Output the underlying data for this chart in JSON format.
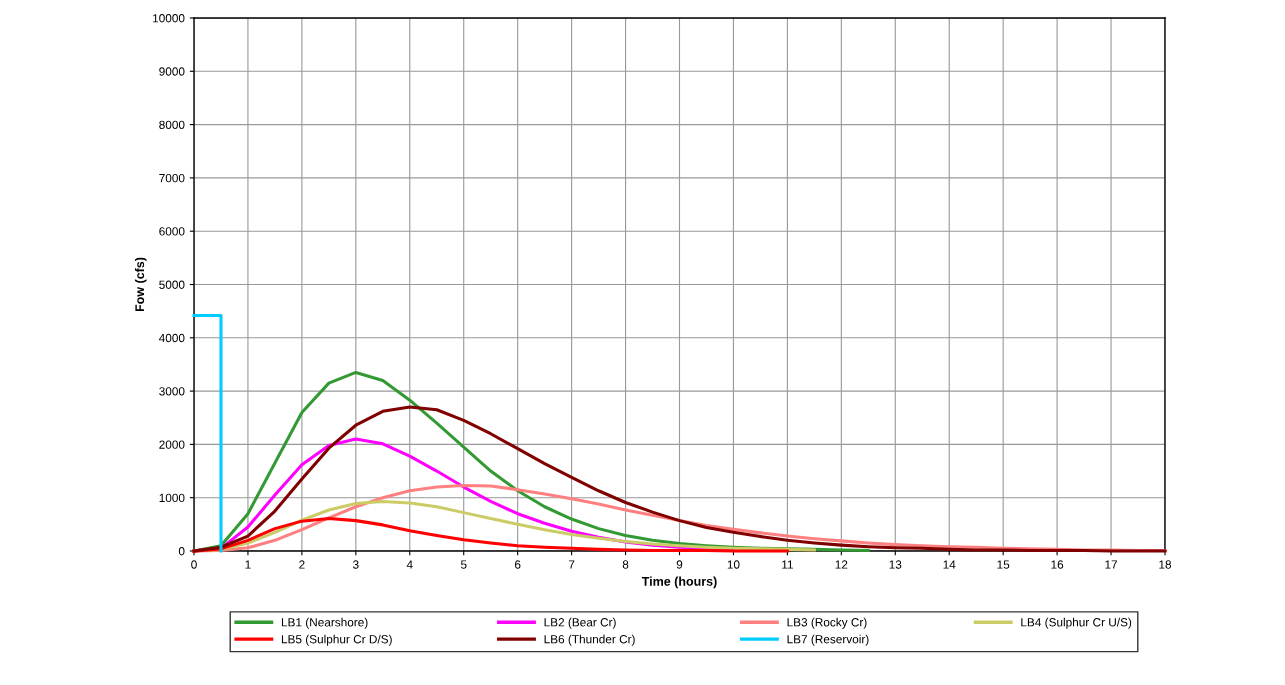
{
  "chart_data": {
    "type": "line",
    "xlabel": "Time (hours)",
    "ylabel": "Fow (cfs)",
    "x": [
      0,
      0.5,
      1,
      1.5,
      2,
      2.5,
      3,
      3.5,
      4,
      4.5,
      5,
      5.5,
      6,
      6.5,
      7,
      7.5,
      8,
      8.5,
      9,
      9.5,
      10,
      10.5,
      11,
      11.5,
      12,
      12.5,
      13,
      13.5,
      14,
      14.5,
      15,
      15.5,
      16,
      16.5,
      17,
      17.5,
      18
    ],
    "xlim": [
      0,
      18
    ],
    "xticks": [
      0,
      1,
      2,
      3,
      4,
      5,
      6,
      7,
      8,
      9,
      10,
      11,
      12,
      13,
      14,
      15,
      16,
      17,
      18
    ],
    "ylim": [
      0,
      10000
    ],
    "yticks": [
      0,
      1000,
      2000,
      3000,
      4000,
      5000,
      6000,
      7000,
      8000,
      9000,
      10000
    ],
    "grid": true,
    "legend": "bottom",
    "marker": "none",
    "line_style": "solid",
    "series": [
      {
        "name": "LB1 (Nearshore)",
        "color": "#339933",
        "values": [
          0,
          100,
          700,
          1650,
          2600,
          3150,
          3350,
          3200,
          2830,
          2400,
          1950,
          1500,
          1130,
          830,
          600,
          420,
          290,
          200,
          140,
          100,
          70,
          50,
          40,
          30,
          20,
          10,
          null,
          null,
          null,
          null,
          null,
          null,
          null,
          null,
          null,
          null,
          null
        ]
      },
      {
        "name": "LB2 (Bear Cr)",
        "color": "#ff00ff",
        "values": [
          0,
          50,
          450,
          1050,
          1620,
          1980,
          2100,
          2010,
          1780,
          1500,
          1200,
          930,
          700,
          520,
          370,
          260,
          170,
          110,
          70,
          50,
          30,
          null,
          null,
          null,
          null,
          null,
          null,
          null,
          null,
          null,
          null,
          null,
          null,
          null,
          null,
          null,
          null
        ]
      },
      {
        "name": "LB3 (Rocky Cr)",
        "color": "#ff8080",
        "values": [
          0,
          10,
          60,
          200,
          400,
          620,
          830,
          1000,
          1130,
          1200,
          1230,
          1220,
          1150,
          1070,
          980,
          880,
          770,
          670,
          570,
          480,
          410,
          340,
          280,
          230,
          190,
          150,
          120,
          100,
          80,
          70,
          50,
          40,
          30,
          20,
          20,
          10,
          10
        ]
      },
      {
        "name": "LB4 (Sulphur Cr U/S)",
        "color": "#cccc66",
        "values": [
          0,
          30,
          150,
          350,
          580,
          770,
          890,
          930,
          900,
          830,
          720,
          610,
          500,
          400,
          310,
          240,
          180,
          130,
          100,
          70,
          50,
          40,
          30,
          20,
          null,
          null,
          null,
          null,
          null,
          null,
          null,
          null,
          null,
          null,
          null,
          null,
          null
        ]
      },
      {
        "name": "LB5 (Sulphur Cr D/S)",
        "color": "#ff0000",
        "values": [
          0,
          40,
          200,
          420,
          560,
          610,
          570,
          490,
          380,
          290,
          210,
          150,
          100,
          70,
          50,
          30,
          20,
          10,
          10,
          10,
          0,
          0,
          0,
          null,
          null,
          null,
          null,
          null,
          null,
          null,
          null,
          null,
          null,
          null,
          null,
          null,
          null
        ]
      },
      {
        "name": "LB6 (Thunder Cr)",
        "color": "#800000",
        "values": [
          0,
          70,
          280,
          750,
          1350,
          1930,
          2360,
          2620,
          2700,
          2650,
          2450,
          2200,
          1920,
          1640,
          1380,
          1130,
          910,
          730,
          570,
          440,
          350,
          270,
          200,
          150,
          110,
          80,
          60,
          50,
          30,
          20,
          20,
          10,
          10,
          10,
          0,
          0,
          0
        ]
      },
      {
        "name": "LB7 (Reservoir)",
        "color": "#00ccff",
        "type": "step",
        "values": [
          4420,
          0,
          null,
          null,
          null,
          null,
          null,
          null,
          null,
          null,
          null,
          null,
          null,
          null,
          null,
          null,
          null,
          null,
          null,
          null,
          null,
          null,
          null,
          null,
          null,
          null,
          null,
          null,
          null,
          null,
          null,
          null,
          null,
          null,
          null,
          null,
          null
        ]
      }
    ]
  }
}
